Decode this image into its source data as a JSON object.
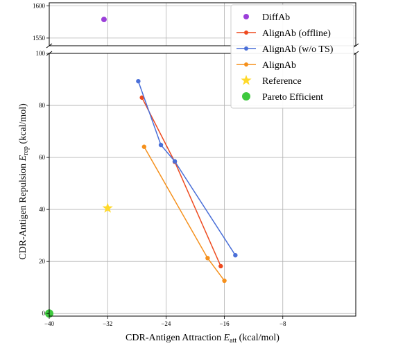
{
  "chart_data": {
    "type": "scatter",
    "broken_y_axis": true,
    "xlabel_main": "CDR-Antigen Attraction ",
    "xlabel_var": "E",
    "xlabel_sub": "att",
    "xlabel_unit": " (kcal/mol)",
    "ylabel_main": "CDR-Antigen Repulsion ",
    "ylabel_var": "E",
    "ylabel_sub": "rep",
    "ylabel_unit": " (kcal/mol)",
    "xlim": [
      -40,
      2
    ],
    "ylim_lower": [
      -1,
      100
    ],
    "ylim_upper": [
      1538,
      1605
    ],
    "x_ticks": [
      -40,
      -32,
      -24,
      -16,
      -8
    ],
    "x_tick_labels": [
      "−40",
      "−32",
      "−24",
      "−16",
      "−8"
    ],
    "y_ticks_lower": [
      0,
      20,
      40,
      60,
      80,
      100
    ],
    "y_tick_labels_lower": [
      "0",
      "20",
      "40",
      "60",
      "80",
      "100"
    ],
    "y_ticks_upper": [
      1550,
      1600
    ],
    "y_tick_labels_upper": [
      "1550",
      "1600"
    ],
    "grid": true,
    "legend_position": "top-right",
    "series": [
      {
        "name": "DiffAb",
        "kind": "point",
        "color": "#9b3fd9",
        "points": [
          [
            -32.5,
            1579
          ]
        ]
      },
      {
        "name": "AlignAb (offline)",
        "kind": "line",
        "color": "#ee4a1f",
        "points": [
          [
            -27.3,
            83
          ],
          [
            -22.8,
            58.3
          ],
          [
            -16.5,
            18.2
          ]
        ]
      },
      {
        "name": "AlignAb (w/o TS)",
        "kind": "line",
        "color": "#4a6fd8",
        "points": [
          [
            -27.8,
            89.3
          ],
          [
            -24.7,
            64.8
          ],
          [
            -22.8,
            58.5
          ],
          [
            -14.5,
            22.4
          ]
        ]
      },
      {
        "name": "AlignAb",
        "kind": "line",
        "color": "#f5901c",
        "points": [
          [
            -27.0,
            64.1
          ],
          [
            -18.3,
            21.3
          ],
          [
            -16.0,
            12.6
          ]
        ]
      },
      {
        "name": "Reference",
        "kind": "star",
        "color": "#ffd92a",
        "points": [
          [
            -32.0,
            40.5
          ]
        ]
      },
      {
        "name": "Pareto Efficient",
        "kind": "point",
        "color": "#3ec93e",
        "points": [
          [
            -40.0,
            0
          ]
        ]
      }
    ]
  }
}
